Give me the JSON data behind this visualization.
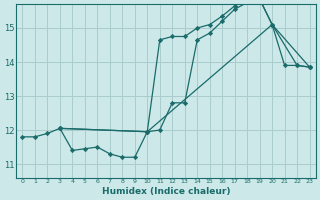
{
  "xlabel": "Humidex (Indice chaleur)",
  "bg_color": "#cce8e8",
  "line_color": "#1a6b6b",
  "grid_color": "#aacccc",
  "xlim": [
    -0.5,
    23.5
  ],
  "ylim": [
    10.6,
    15.7
  ],
  "yticks": [
    11,
    12,
    13,
    14,
    15
  ],
  "xticks": [
    0,
    1,
    2,
    3,
    4,
    5,
    6,
    7,
    8,
    9,
    10,
    11,
    12,
    13,
    14,
    15,
    16,
    17,
    18,
    19,
    20,
    21,
    22,
    23
  ],
  "series1_x": [
    0,
    1,
    2,
    3,
    4,
    5,
    6,
    7,
    8,
    9,
    10,
    11,
    12,
    13,
    14,
    15,
    16,
    17,
    18,
    19,
    20,
    21,
    22,
    23
  ],
  "series1_y": [
    11.8,
    11.8,
    11.9,
    12.05,
    11.4,
    11.45,
    11.5,
    11.3,
    11.2,
    11.2,
    11.95,
    12.0,
    12.8,
    12.8,
    14.65,
    14.85,
    15.2,
    15.55,
    15.75,
    15.85,
    15.1,
    13.9,
    13.9,
    13.85
  ],
  "series2_x": [
    3,
    10,
    11,
    12,
    13,
    14,
    15,
    16,
    17,
    18,
    19,
    20,
    22,
    23
  ],
  "series2_y": [
    12.05,
    11.95,
    14.65,
    14.75,
    14.75,
    15.0,
    15.1,
    15.35,
    15.65,
    15.85,
    15.85,
    15.1,
    13.9,
    13.85
  ],
  "series3_x": [
    3,
    10,
    20,
    23
  ],
  "series3_y": [
    12.05,
    11.95,
    15.1,
    13.85
  ]
}
